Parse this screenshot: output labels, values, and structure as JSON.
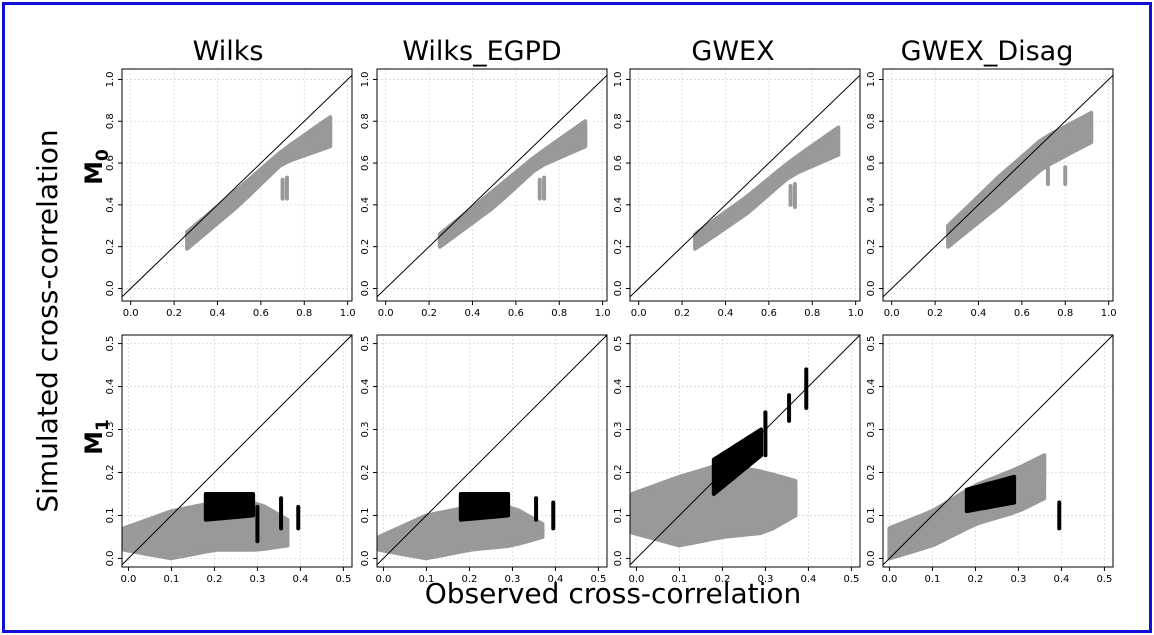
{
  "figure": {
    "ylabel": "Simulated cross-correlation",
    "xlabel": "Observed cross-correlation",
    "columns": [
      "Wilks",
      "Wilks_EGPD",
      "GWEX",
      "GWEX_Disag"
    ],
    "rows": [
      {
        "label": "M",
        "sub": "0"
      },
      {
        "label": "M",
        "sub": "1"
      }
    ]
  },
  "colors": {
    "frame": "#1010d8",
    "cloud": "#999999",
    "highlight": "#000000",
    "grid": "#d9d9d9",
    "identity_line": "#000000"
  },
  "chart_data": [
    {
      "type": "scatter",
      "row": 0,
      "col": 0,
      "title": "Wilks",
      "xlim": [
        -0.04,
        1.02
      ],
      "ylim": [
        -0.06,
        1.05
      ],
      "xticks": [
        "0.0",
        "0.2",
        "0.4",
        "0.6",
        "0.8",
        "1.0"
      ],
      "yticks": [
        "0.0",
        "0.2",
        "0.4",
        "0.6",
        "0.8",
        "1.0"
      ],
      "grid": true,
      "identity_line": true,
      "clouds": [
        {
          "color": "#999999",
          "x_range": [
            0.26,
            0.92
          ],
          "lower": [
            [
              0.26,
              0.19
            ],
            [
              0.5,
              0.4
            ],
            [
              0.7,
              0.6
            ],
            [
              0.92,
              0.68
            ]
          ],
          "upper": [
            [
              0.26,
              0.27
            ],
            [
              0.5,
              0.48
            ],
            [
              0.7,
              0.66
            ],
            [
              0.92,
              0.82
            ]
          ]
        }
      ],
      "bars": [
        {
          "color": "#999999",
          "x": 0.7,
          "y0": 0.43,
          "y1": 0.52
        },
        {
          "color": "#999999",
          "x": 0.72,
          "y0": 0.43,
          "y1": 0.53
        }
      ]
    },
    {
      "type": "scatter",
      "row": 0,
      "col": 1,
      "title": "Wilks_EGPD",
      "xlim": [
        -0.04,
        1.02
      ],
      "ylim": [
        -0.06,
        1.05
      ],
      "xticks": [
        "0.0",
        "0.2",
        "0.4",
        "0.6",
        "0.8",
        "1.0"
      ],
      "yticks": [
        "0.0",
        "0.2",
        "0.4",
        "0.6",
        "0.8",
        "1.0"
      ],
      "grid": true,
      "identity_line": true,
      "clouds": [
        {
          "color": "#999999",
          "x_range": [
            0.25,
            0.92
          ],
          "lower": [
            [
              0.25,
              0.2
            ],
            [
              0.5,
              0.39
            ],
            [
              0.7,
              0.58
            ],
            [
              0.92,
              0.68
            ]
          ],
          "upper": [
            [
              0.25,
              0.26
            ],
            [
              0.5,
              0.47
            ],
            [
              0.7,
              0.64
            ],
            [
              0.92,
              0.8
            ]
          ]
        }
      ],
      "bars": [
        {
          "color": "#999999",
          "x": 0.71,
          "y0": 0.43,
          "y1": 0.52
        },
        {
          "color": "#999999",
          "x": 0.73,
          "y0": 0.43,
          "y1": 0.53
        }
      ]
    },
    {
      "type": "scatter",
      "row": 0,
      "col": 2,
      "title": "GWEX",
      "xlim": [
        -0.04,
        1.02
      ],
      "ylim": [
        -0.06,
        1.05
      ],
      "xticks": [
        "0.0",
        "0.2",
        "0.4",
        "0.6",
        "0.8",
        "1.0"
      ],
      "yticks": [
        "0.0",
        "0.2",
        "0.4",
        "0.6",
        "0.8",
        "1.0"
      ],
      "grid": true,
      "identity_line": true,
      "clouds": [
        {
          "color": "#999999",
          "x_range": [
            0.26,
            0.92
          ],
          "lower": [
            [
              0.26,
              0.19
            ],
            [
              0.5,
              0.36
            ],
            [
              0.7,
              0.54
            ],
            [
              0.92,
              0.64
            ]
          ],
          "upper": [
            [
              0.26,
              0.26
            ],
            [
              0.5,
              0.44
            ],
            [
              0.7,
              0.61
            ],
            [
              0.92,
              0.77
            ]
          ]
        }
      ],
      "bars": [
        {
          "color": "#999999",
          "x": 0.7,
          "y0": 0.4,
          "y1": 0.49
        },
        {
          "color": "#999999",
          "x": 0.72,
          "y0": 0.39,
          "y1": 0.5
        }
      ]
    },
    {
      "type": "scatter",
      "row": 0,
      "col": 3,
      "title": "GWEX_Disag",
      "xlim": [
        -0.04,
        1.02
      ],
      "ylim": [
        -0.06,
        1.05
      ],
      "xticks": [
        "0.0",
        "0.2",
        "0.4",
        "0.6",
        "0.8",
        "1.0"
      ],
      "yticks": [
        "0.0",
        "0.2",
        "0.4",
        "0.6",
        "0.8",
        "1.0"
      ],
      "grid": true,
      "identity_line": true,
      "clouds": [
        {
          "color": "#999999",
          "x_range": [
            0.26,
            0.92
          ],
          "lower": [
            [
              0.26,
              0.2
            ],
            [
              0.5,
              0.4
            ],
            [
              0.7,
              0.58
            ],
            [
              0.92,
              0.7
            ]
          ],
          "upper": [
            [
              0.26,
              0.3
            ],
            [
              0.5,
              0.54
            ],
            [
              0.7,
              0.72
            ],
            [
              0.92,
              0.84
            ]
          ]
        }
      ],
      "bars": [
        {
          "color": "#999999",
          "x": 0.72,
          "y0": 0.5,
          "y1": 0.58
        },
        {
          "color": "#999999",
          "x": 0.8,
          "y0": 0.5,
          "y1": 0.58
        }
      ]
    },
    {
      "type": "scatter",
      "row": 1,
      "col": 0,
      "title": "Wilks",
      "xlim": [
        -0.015,
        0.52
      ],
      "ylim": [
        -0.02,
        0.52
      ],
      "xticks": [
        "0.0",
        "0.1",
        "0.2",
        "0.3",
        "0.4",
        "0.5"
      ],
      "yticks": [
        "0.0",
        "0.1",
        "0.2",
        "0.3",
        "0.4",
        "0.5"
      ],
      "grid": true,
      "identity_line": true,
      "clouds": [
        {
          "color": "#999999",
          "x_range": [
            -0.01,
            0.37
          ],
          "lower": [
            [
              -0.01,
              0.02
            ],
            [
              0.1,
              0.0
            ],
            [
              0.2,
              0.02
            ],
            [
              0.3,
              0.02
            ],
            [
              0.37,
              0.03
            ]
          ],
          "upper": [
            [
              -0.01,
              0.07
            ],
            [
              0.1,
              0.11
            ],
            [
              0.2,
              0.13
            ],
            [
              0.3,
              0.13
            ],
            [
              0.37,
              0.09
            ]
          ]
        },
        {
          "color": "#000000",
          "x_range": [
            0.18,
            0.29
          ],
          "lower": [
            [
              0.18,
              0.09
            ],
            [
              0.29,
              0.1
            ]
          ],
          "upper": [
            [
              0.18,
              0.15
            ],
            [
              0.29,
              0.15
            ]
          ]
        }
      ],
      "bars": [
        {
          "color": "#000000",
          "x": 0.3,
          "y0": 0.04,
          "y1": 0.12
        },
        {
          "color": "#000000",
          "x": 0.355,
          "y0": 0.07,
          "y1": 0.14
        },
        {
          "color": "#000000",
          "x": 0.395,
          "y0": 0.07,
          "y1": 0.12
        }
      ]
    },
    {
      "type": "scatter",
      "row": 1,
      "col": 1,
      "title": "Wilks_EGPD",
      "xlim": [
        -0.015,
        0.52
      ],
      "ylim": [
        -0.02,
        0.52
      ],
      "xticks": [
        "0.0",
        "0.1",
        "0.2",
        "0.3",
        "0.4",
        "0.5"
      ],
      "yticks": [
        "0.0",
        "0.1",
        "0.2",
        "0.3",
        "0.4",
        "0.5"
      ],
      "grid": true,
      "identity_line": true,
      "clouds": [
        {
          "color": "#999999",
          "x_range": [
            -0.01,
            0.37
          ],
          "lower": [
            [
              -0.01,
              0.02
            ],
            [
              0.1,
              0.0
            ],
            [
              0.2,
              0.02
            ],
            [
              0.3,
              0.03
            ],
            [
              0.37,
              0.05
            ]
          ],
          "upper": [
            [
              -0.01,
              0.05
            ],
            [
              0.1,
              0.1
            ],
            [
              0.2,
              0.12
            ],
            [
              0.3,
              0.12
            ],
            [
              0.37,
              0.08
            ]
          ]
        },
        {
          "color": "#000000",
          "x_range": [
            0.18,
            0.29
          ],
          "lower": [
            [
              0.18,
              0.09
            ],
            [
              0.29,
              0.1
            ]
          ],
          "upper": [
            [
              0.18,
              0.15
            ],
            [
              0.29,
              0.15
            ]
          ]
        }
      ],
      "bars": [
        {
          "color": "#000000",
          "x": 0.355,
          "y0": 0.09,
          "y1": 0.14
        },
        {
          "color": "#000000",
          "x": 0.395,
          "y0": 0.07,
          "y1": 0.13
        }
      ]
    },
    {
      "type": "scatter",
      "row": 1,
      "col": 2,
      "title": "GWEX",
      "xlim": [
        -0.015,
        0.52
      ],
      "ylim": [
        -0.02,
        0.52
      ],
      "xticks": [
        "0.0",
        "0.1",
        "0.2",
        "0.3",
        "0.4",
        "0.5"
      ],
      "yticks": [
        "0.0",
        "0.1",
        "0.2",
        "0.3",
        "0.4",
        "0.5"
      ],
      "grid": true,
      "identity_line": true,
      "clouds": [
        {
          "color": "#999999",
          "x_range": [
            -0.01,
            0.37
          ],
          "lower": [
            [
              -0.01,
              0.06
            ],
            [
              0.1,
              0.03
            ],
            [
              0.2,
              0.05
            ],
            [
              0.3,
              0.06
            ],
            [
              0.37,
              0.1
            ]
          ],
          "upper": [
            [
              -0.01,
              0.15
            ],
            [
              0.1,
              0.19
            ],
            [
              0.2,
              0.22
            ],
            [
              0.3,
              0.2
            ],
            [
              0.37,
              0.18
            ]
          ]
        },
        {
          "color": "#000000",
          "x_range": [
            0.18,
            0.29
          ],
          "lower": [
            [
              0.18,
              0.15
            ],
            [
              0.29,
              0.24
            ]
          ],
          "upper": [
            [
              0.18,
              0.23
            ],
            [
              0.29,
              0.3
            ]
          ]
        }
      ],
      "bars": [
        {
          "color": "#000000",
          "x": 0.3,
          "y0": 0.24,
          "y1": 0.34
        },
        {
          "color": "#000000",
          "x": 0.355,
          "y0": 0.32,
          "y1": 0.38
        },
        {
          "color": "#000000",
          "x": 0.395,
          "y0": 0.35,
          "y1": 0.44
        }
      ]
    },
    {
      "type": "scatter",
      "row": 1,
      "col": 3,
      "title": "GWEX_Disag",
      "xlim": [
        -0.015,
        0.52
      ],
      "ylim": [
        -0.02,
        0.52
      ],
      "xticks": [
        "0.0",
        "0.1",
        "0.2",
        "0.3",
        "0.4",
        "0.5"
      ],
      "yticks": [
        "0.0",
        "0.1",
        "0.2",
        "0.3",
        "0.4",
        "0.5"
      ],
      "grid": true,
      "identity_line": true,
      "clouds": [
        {
          "color": "#999999",
          "x_range": [
            0.0,
            0.36
          ],
          "lower": [
            [
              0.0,
              0.0
            ],
            [
              0.1,
              0.03
            ],
            [
              0.2,
              0.08
            ],
            [
              0.3,
              0.11
            ],
            [
              0.36,
              0.14
            ]
          ],
          "upper": [
            [
              0.0,
              0.07
            ],
            [
              0.1,
              0.11
            ],
            [
              0.2,
              0.17
            ],
            [
              0.3,
              0.21
            ],
            [
              0.36,
              0.24
            ]
          ]
        },
        {
          "color": "#000000",
          "x_range": [
            0.18,
            0.29
          ],
          "lower": [
            [
              0.18,
              0.11
            ],
            [
              0.29,
              0.13
            ]
          ],
          "upper": [
            [
              0.18,
              0.16
            ],
            [
              0.29,
              0.19
            ]
          ]
        }
      ],
      "bars": [
        {
          "color": "#999999",
          "x": 0.36,
          "y0": 0.18,
          "y1": 0.24
        },
        {
          "color": "#000000",
          "x": 0.395,
          "y0": 0.07,
          "y1": 0.13
        }
      ]
    }
  ]
}
